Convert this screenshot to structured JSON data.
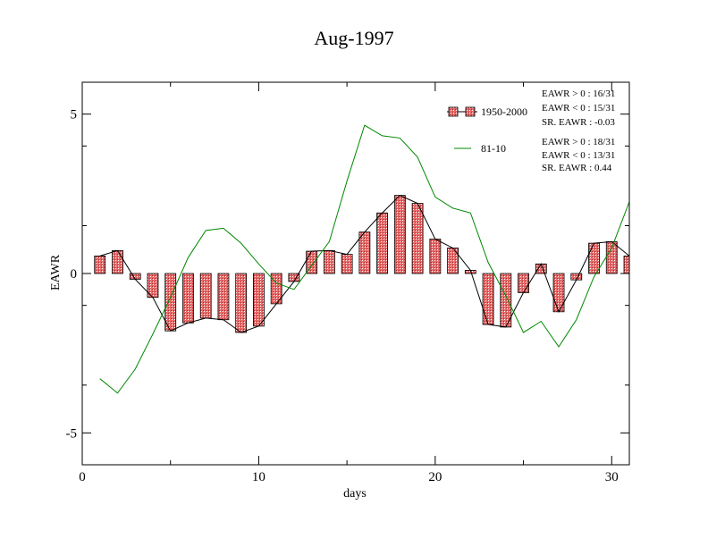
{
  "chart_data": {
    "type": "bar",
    "title": "Aug-1997",
    "xlabel": "days",
    "ylabel": "EAWR",
    "xlim": [
      0,
      31
    ],
    "ylim": [
      -6,
      6
    ],
    "xticks": [
      0,
      10,
      20,
      30
    ],
    "yticks": [
      -5,
      0,
      5
    ],
    "grid": false,
    "legend_position": "top-right",
    "x": [
      1,
      2,
      3,
      4,
      5,
      6,
      7,
      8,
      9,
      10,
      11,
      12,
      13,
      14,
      15,
      16,
      17,
      18,
      19,
      20,
      21,
      22,
      23,
      24,
      25,
      26,
      27,
      28,
      29,
      30,
      31
    ],
    "series": [
      {
        "name": "1950-2000",
        "kind": "bar",
        "color": "#e06666",
        "values": [
          0.55,
          0.72,
          -0.18,
          -0.75,
          -1.8,
          -1.55,
          -1.4,
          -1.45,
          -1.85,
          -1.65,
          -0.95,
          -0.25,
          0.7,
          0.72,
          0.6,
          1.3,
          1.9,
          2.45,
          2.2,
          1.08,
          0.8,
          0.1,
          -1.6,
          -1.68,
          -0.6,
          0.3,
          -1.2,
          -0.2,
          0.95,
          1.0,
          0.55
        ]
      },
      {
        "name": "81-10",
        "kind": "line",
        "color": "#008800",
        "values": [
          -3.3,
          -3.75,
          -3.0,
          -1.9,
          -0.75,
          0.5,
          1.35,
          1.42,
          0.95,
          0.3,
          -0.3,
          -0.5,
          0.25,
          1.0,
          2.9,
          4.65,
          4.32,
          4.25,
          3.65,
          2.4,
          2.05,
          1.9,
          0.35,
          -0.7,
          -1.85,
          -1.5,
          -2.3,
          -1.45,
          -0.1,
          0.8,
          2.25
        ]
      }
    ],
    "stats": [
      [
        "EAWR > 0 : 16/31",
        "EAWR < 0 : 15/31",
        "SR. EAWR : -0.03"
      ],
      [
        "EAWR > 0 : 18/31",
        "EAWR < 0 : 13/31",
        "SR. EAWR :  0.44"
      ]
    ]
  }
}
